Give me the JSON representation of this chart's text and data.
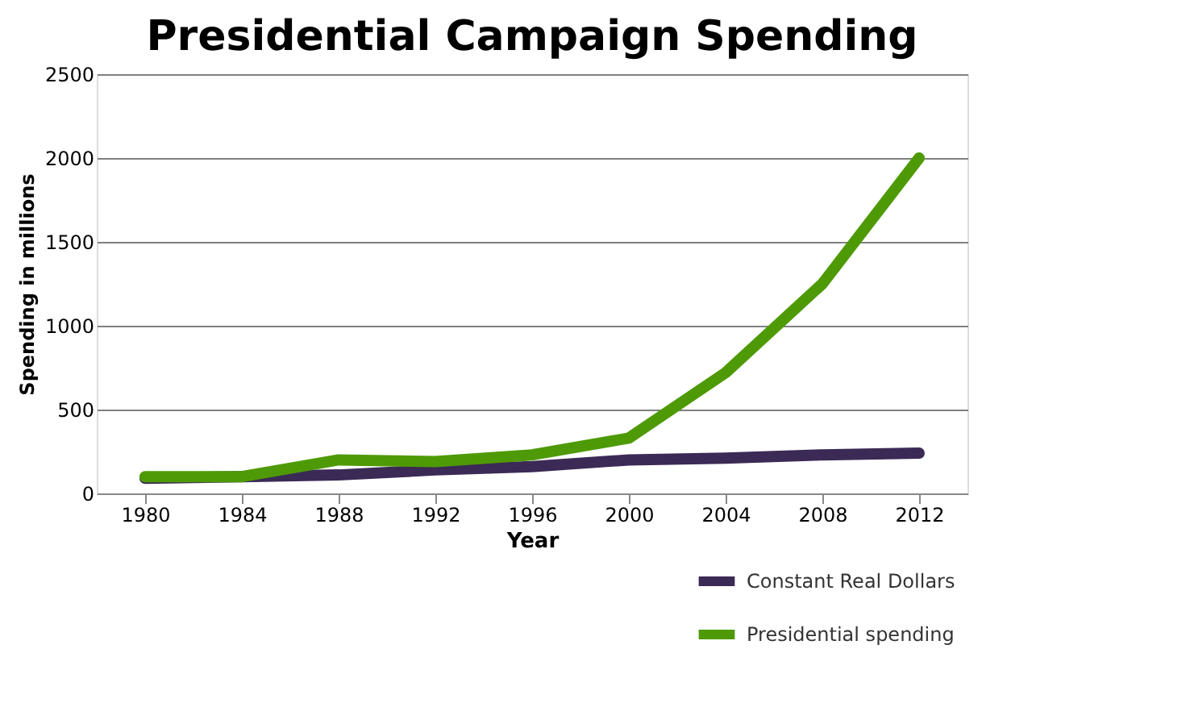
{
  "chart_data": {
    "type": "line",
    "title": "Presidential Campaign Spending",
    "xlabel": "Year",
    "ylabel": "Spending in millions",
    "categories": [
      "1980",
      "1984",
      "1988",
      "1992",
      "1996",
      "2000",
      "2004",
      "2008",
      "2012"
    ],
    "series": [
      {
        "name": "Constant Real Dollars",
        "color": "#3b2a55",
        "values": [
          90,
          100,
          110,
          140,
          160,
          200,
          210,
          230,
          240
        ]
      },
      {
        "name": "Presidential spending",
        "color": "#4e9a06",
        "values": [
          100,
          100,
          200,
          190,
          230,
          330,
          720,
          1250,
          2000
        ]
      }
    ],
    "ylim": [
      0,
      2500
    ],
    "yticks": [
      0,
      500,
      1000,
      1500,
      2000,
      2500
    ],
    "grid": "y",
    "legend": "bottom right",
    "marker": "none",
    "line_style": "solid"
  }
}
